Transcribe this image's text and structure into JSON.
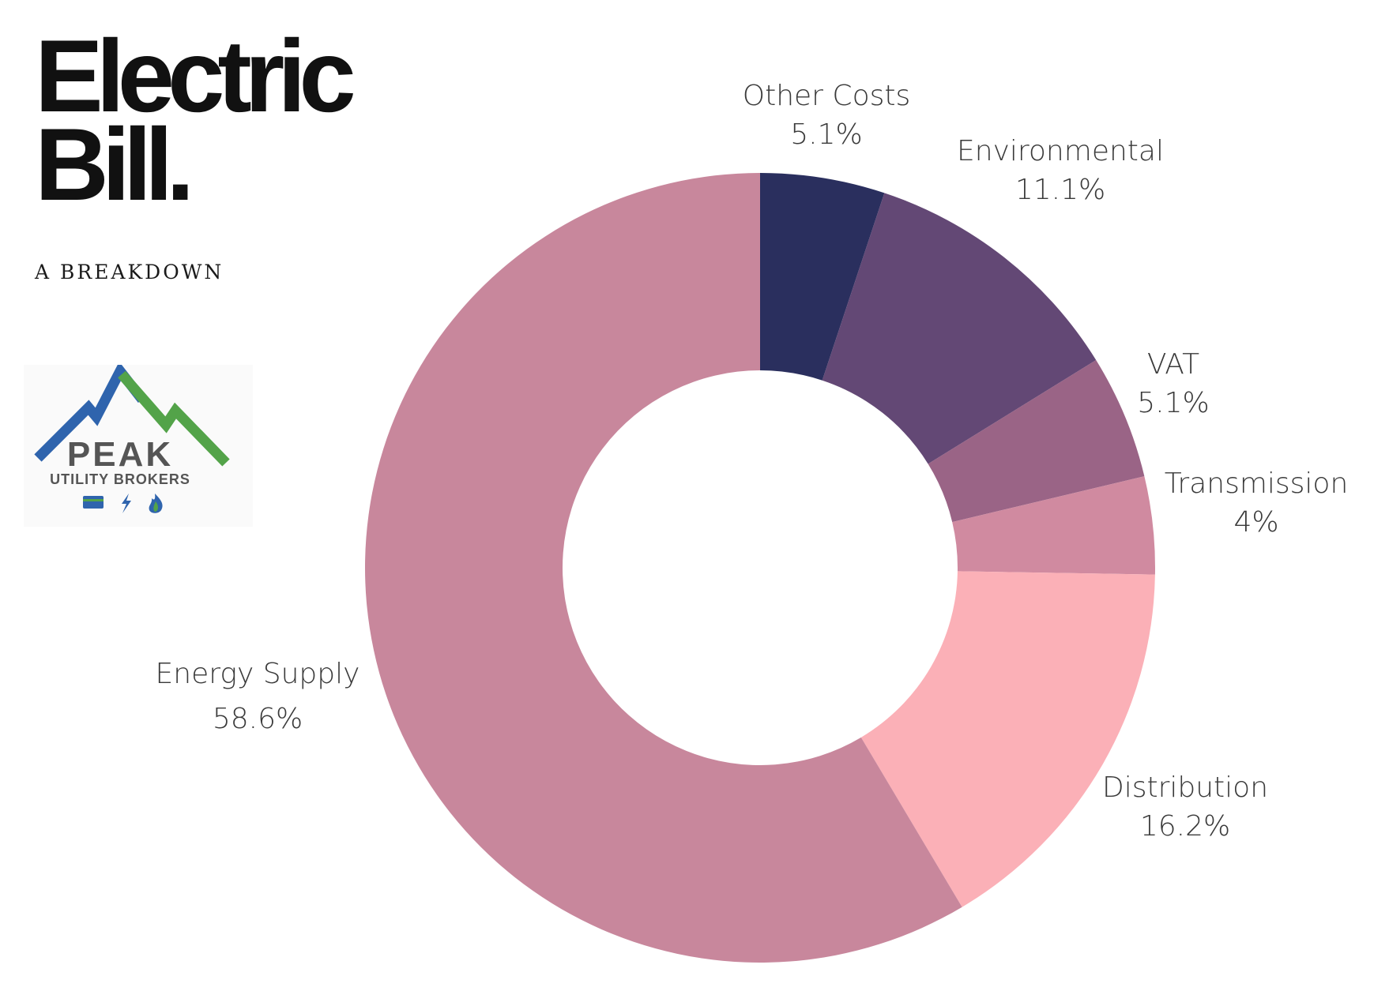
{
  "header": {
    "title_line1": "Electric",
    "title_line2": "Bill.",
    "subtitle": "A BREAKDOWN"
  },
  "logo": {
    "name": "PEAK",
    "tagline": "UTILITY BROKERS",
    "icons": [
      "card-icon",
      "lightning-icon",
      "flame-icon"
    ],
    "colors": {
      "blue": "#2f64ad",
      "green": "#53a349",
      "text": "#555555"
    }
  },
  "chart_data": {
    "type": "pie",
    "donut": true,
    "title": "",
    "slices": [
      {
        "label": "Other Costs",
        "value": 5.1,
        "value_label": "5.1%",
        "color": "#2a2f5e"
      },
      {
        "label": "Environmental",
        "value": 11.1,
        "value_label": "11.1%",
        "color": "#634875"
      },
      {
        "label": "VAT",
        "value": 5.1,
        "value_label": "5.1%",
        "color": "#9a6486"
      },
      {
        "label": "Transmission",
        "value": 4,
        "value_label": "4%",
        "color": "#d08aa0"
      },
      {
        "label": "Distribution",
        "value": 16.2,
        "value_label": "16.2%",
        "color": "#fbb0b7"
      },
      {
        "label": "Energy Supply",
        "value": 58.6,
        "value_label": "58.6%",
        "color": "#c8879c"
      }
    ]
  }
}
